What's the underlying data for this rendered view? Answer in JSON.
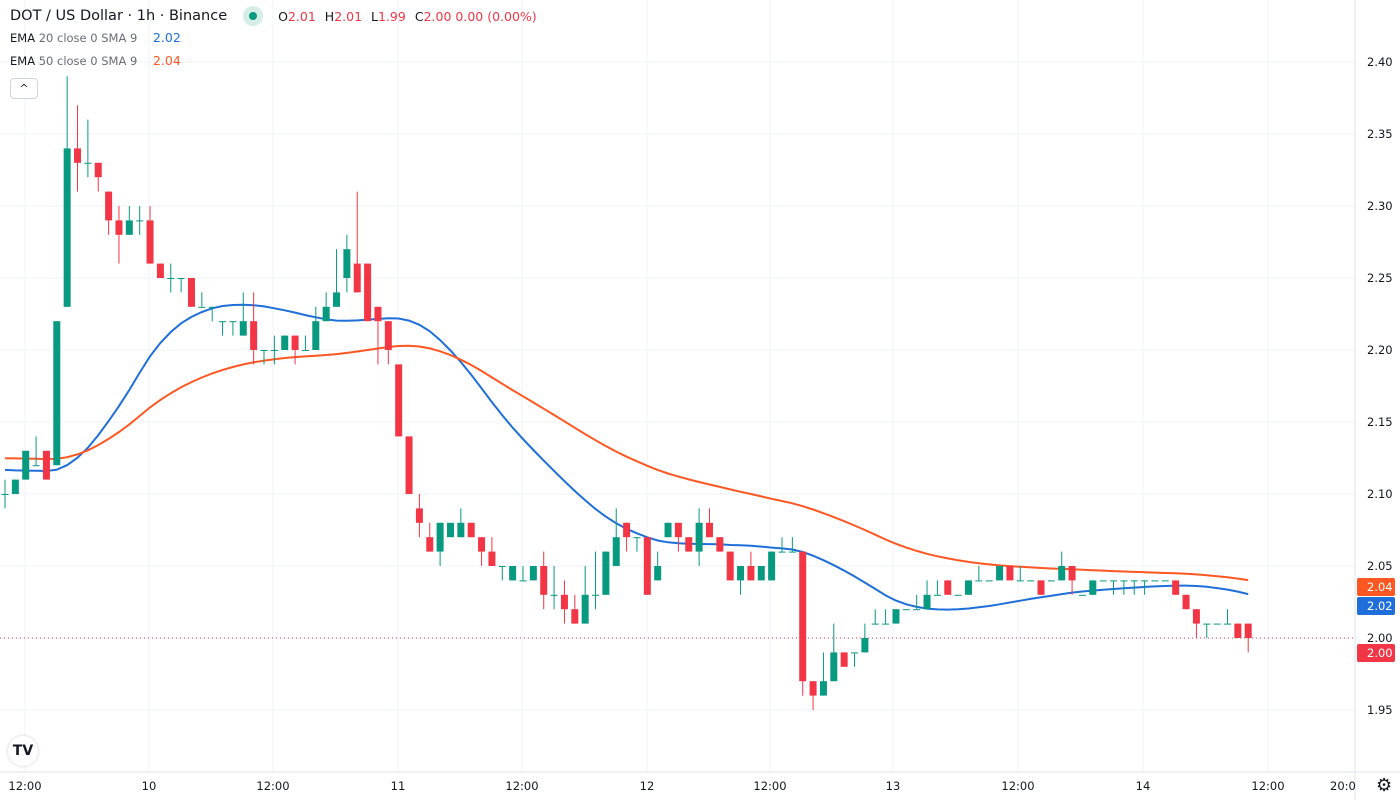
{
  "header": {
    "title": "DOT / US Dollar · 1h · Binance",
    "ohlc": {
      "o_label": "O",
      "o": "2.01",
      "h_label": "H",
      "h": "2.01",
      "l_label": "L",
      "l": "1.99",
      "c_label": "C",
      "c": "2.00",
      "change": "0.00 (0.00%)"
    },
    "status_color": "#089981"
  },
  "indicators": [
    {
      "label": "EMA",
      "params": "20 close 0 SMA 9",
      "value": "2.02",
      "color": "#1e6fd9"
    },
    {
      "label": "EMA",
      "params": "50 close 0 SMA 9",
      "value": "2.04",
      "color": "#ff5722"
    }
  ],
  "controls": {
    "collapse_icon": "chevron-up-icon",
    "collapse_glyph": "^",
    "logo": "TV",
    "settings_icon": "gear-icon",
    "settings_glyph": "⚙"
  },
  "chart_data": {
    "type": "candlestick",
    "symbol": "DOT / US Dollar",
    "interval": "1h",
    "exchange": "Binance",
    "first_candle_time": "9 10:00",
    "x_ticks": [
      "12:00",
      "10",
      "12:00",
      "11",
      "12:00",
      "12",
      "12:00",
      "13",
      "12:00",
      "14",
      "12:00",
      "20:0"
    ],
    "y_ticks": [
      "2.40",
      "2.35",
      "2.30",
      "2.25",
      "2.20",
      "2.15",
      "2.10",
      "2.05",
      "2.00",
      "1.95"
    ],
    "ylim": [
      1.93,
      2.42
    ],
    "grid": true,
    "colors": {
      "up": "#089981",
      "down": "#f23645"
    },
    "ohlc": [
      [
        2.1,
        2.11,
        2.09,
        2.1
      ],
      [
        2.1,
        2.11,
        2.1,
        2.11
      ],
      [
        2.11,
        2.13,
        2.11,
        2.13
      ],
      [
        2.12,
        2.14,
        2.12,
        2.12
      ],
      [
        2.13,
        2.13,
        2.11,
        2.11
      ],
      [
        2.12,
        2.22,
        2.12,
        2.22
      ],
      [
        2.23,
        2.39,
        2.23,
        2.34
      ],
      [
        2.34,
        2.37,
        2.31,
        2.33
      ],
      [
        2.33,
        2.36,
        2.32,
        2.33
      ],
      [
        2.33,
        2.33,
        2.31,
        2.32
      ],
      [
        2.31,
        2.31,
        2.28,
        2.29
      ],
      [
        2.29,
        2.3,
        2.26,
        2.28
      ],
      [
        2.28,
        2.3,
        2.28,
        2.29
      ],
      [
        2.29,
        2.3,
        2.28,
        2.29
      ],
      [
        2.29,
        2.3,
        2.26,
        2.26
      ],
      [
        2.26,
        2.26,
        2.25,
        2.25
      ],
      [
        2.25,
        2.26,
        2.24,
        2.25
      ],
      [
        2.25,
        2.25,
        2.24,
        2.25
      ],
      [
        2.25,
        2.25,
        2.23,
        2.23
      ],
      [
        2.23,
        2.24,
        2.23,
        2.23
      ],
      [
        2.23,
        2.23,
        2.22,
        2.23
      ],
      [
        2.22,
        2.22,
        2.21,
        2.22
      ],
      [
        2.22,
        2.22,
        2.21,
        2.22
      ],
      [
        2.21,
        2.24,
        2.21,
        2.22
      ],
      [
        2.22,
        2.24,
        2.19,
        2.2
      ],
      [
        2.2,
        2.2,
        2.19,
        2.2
      ],
      [
        2.2,
        2.21,
        2.19,
        2.2
      ],
      [
        2.2,
        2.21,
        2.2,
        2.21
      ],
      [
        2.21,
        2.21,
        2.19,
        2.2
      ],
      [
        2.2,
        2.21,
        2.2,
        2.2
      ],
      [
        2.2,
        2.23,
        2.2,
        2.22
      ],
      [
        2.22,
        2.24,
        2.22,
        2.23
      ],
      [
        2.23,
        2.27,
        2.23,
        2.24
      ],
      [
        2.25,
        2.28,
        2.24,
        2.27
      ],
      [
        2.26,
        2.31,
        2.24,
        2.24
      ],
      [
        2.26,
        2.26,
        2.22,
        2.22
      ],
      [
        2.23,
        2.23,
        2.19,
        2.22
      ],
      [
        2.22,
        2.22,
        2.19,
        2.2
      ],
      [
        2.19,
        2.19,
        2.14,
        2.14
      ],
      [
        2.14,
        2.14,
        2.1,
        2.1
      ],
      [
        2.09,
        2.1,
        2.07,
        2.08
      ],
      [
        2.07,
        2.08,
        2.06,
        2.06
      ],
      [
        2.06,
        2.08,
        2.05,
        2.08
      ],
      [
        2.07,
        2.08,
        2.07,
        2.08
      ],
      [
        2.07,
        2.09,
        2.07,
        2.08
      ],
      [
        2.08,
        2.08,
        2.07,
        2.07
      ],
      [
        2.07,
        2.07,
        2.05,
        2.06
      ],
      [
        2.06,
        2.07,
        2.05,
        2.05
      ],
      [
        2.05,
        2.05,
        2.04,
        2.05
      ],
      [
        2.04,
        2.05,
        2.04,
        2.05
      ],
      [
        2.04,
        2.05,
        2.04,
        2.04
      ],
      [
        2.04,
        2.05,
        2.04,
        2.05
      ],
      [
        2.05,
        2.06,
        2.02,
        2.03
      ],
      [
        2.03,
        2.05,
        2.02,
        2.03
      ],
      [
        2.03,
        2.04,
        2.01,
        2.02
      ],
      [
        2.02,
        2.03,
        2.01,
        2.01
      ],
      [
        2.01,
        2.05,
        2.01,
        2.03
      ],
      [
        2.03,
        2.06,
        2.02,
        2.03
      ],
      [
        2.03,
        2.06,
        2.03,
        2.06
      ],
      [
        2.05,
        2.09,
        2.05,
        2.07
      ],
      [
        2.08,
        2.08,
        2.06,
        2.07
      ],
      [
        2.07,
        2.07,
        2.06,
        2.07
      ],
      [
        2.07,
        2.07,
        2.03,
        2.03
      ],
      [
        2.04,
        2.06,
        2.04,
        2.05
      ],
      [
        2.07,
        2.08,
        2.07,
        2.08
      ],
      [
        2.08,
        2.08,
        2.06,
        2.07
      ],
      [
        2.07,
        2.07,
        2.06,
        2.06
      ],
      [
        2.06,
        2.09,
        2.05,
        2.08
      ],
      [
        2.08,
        2.09,
        2.07,
        2.07
      ],
      [
        2.07,
        2.07,
        2.06,
        2.06
      ],
      [
        2.06,
        2.06,
        2.04,
        2.04
      ],
      [
        2.04,
        2.05,
        2.03,
        2.05
      ],
      [
        2.05,
        2.06,
        2.04,
        2.04
      ],
      [
        2.04,
        2.05,
        2.04,
        2.05
      ],
      [
        2.04,
        2.06,
        2.04,
        2.06
      ],
      [
        2.06,
        2.07,
        2.06,
        2.06
      ],
      [
        2.06,
        2.07,
        2.06,
        2.06
      ],
      [
        2.06,
        2.06,
        1.96,
        1.97
      ],
      [
        1.97,
        1.97,
        1.95,
        1.96
      ],
      [
        1.96,
        1.99,
        1.96,
        1.97
      ],
      [
        1.97,
        2.01,
        1.97,
        1.99
      ],
      [
        1.99,
        1.99,
        1.98,
        1.98
      ],
      [
        1.99,
        1.99,
        1.98,
        1.99
      ],
      [
        1.99,
        2.01,
        1.99,
        2.0
      ],
      [
        2.01,
        2.02,
        2.01,
        2.01
      ],
      [
        2.01,
        2.02,
        2.01,
        2.01
      ],
      [
        2.01,
        2.02,
        2.01,
        2.02
      ],
      [
        2.02,
        2.02,
        2.02,
        2.02
      ],
      [
        2.02,
        2.03,
        2.02,
        2.02
      ],
      [
        2.02,
        2.04,
        2.02,
        2.03
      ],
      [
        2.03,
        2.04,
        2.03,
        2.03
      ],
      [
        2.04,
        2.04,
        2.03,
        2.03
      ],
      [
        2.03,
        2.03,
        2.03,
        2.03
      ],
      [
        2.03,
        2.04,
        2.03,
        2.04
      ],
      [
        2.04,
        2.05,
        2.04,
        2.04
      ],
      [
        2.04,
        2.04,
        2.04,
        2.04
      ],
      [
        2.04,
        2.05,
        2.04,
        2.05
      ],
      [
        2.05,
        2.05,
        2.04,
        2.04
      ],
      [
        2.04,
        2.05,
        2.04,
        2.04
      ],
      [
        2.04,
        2.04,
        2.04,
        2.04
      ],
      [
        2.04,
        2.04,
        2.03,
        2.03
      ],
      [
        2.04,
        2.04,
        2.04,
        2.04
      ],
      [
        2.04,
        2.06,
        2.04,
        2.05
      ],
      [
        2.05,
        2.05,
        2.03,
        2.04
      ],
      [
        2.03,
        2.03,
        2.03,
        2.03
      ],
      [
        2.03,
        2.04,
        2.03,
        2.04
      ],
      [
        2.04,
        2.04,
        2.04,
        2.04
      ],
      [
        2.04,
        2.04,
        2.03,
        2.04
      ],
      [
        2.04,
        2.04,
        2.03,
        2.04
      ],
      [
        2.04,
        2.04,
        2.03,
        2.04
      ],
      [
        2.04,
        2.04,
        2.03,
        2.04
      ],
      [
        2.04,
        2.04,
        2.04,
        2.04
      ],
      [
        2.04,
        2.04,
        2.04,
        2.04
      ],
      [
        2.04,
        2.04,
        2.03,
        2.03
      ],
      [
        2.03,
        2.03,
        2.02,
        2.02
      ],
      [
        2.02,
        2.02,
        2.0,
        2.01
      ],
      [
        2.01,
        2.01,
        2.0,
        2.01
      ],
      [
        2.01,
        2.01,
        2.01,
        2.01
      ],
      [
        2.01,
        2.02,
        2.01,
        2.01
      ],
      [
        2.01,
        2.01,
        2.0,
        2.0
      ],
      [
        2.01,
        2.01,
        1.99,
        2.0
      ]
    ],
    "price_labels": [
      {
        "value": "2.04",
        "color": "#ff5722"
      },
      {
        "value": "2.02",
        "color": "#1e6fd9"
      },
      {
        "value": "2.00",
        "color": "#f23645"
      }
    ],
    "last_price": 2.0
  }
}
